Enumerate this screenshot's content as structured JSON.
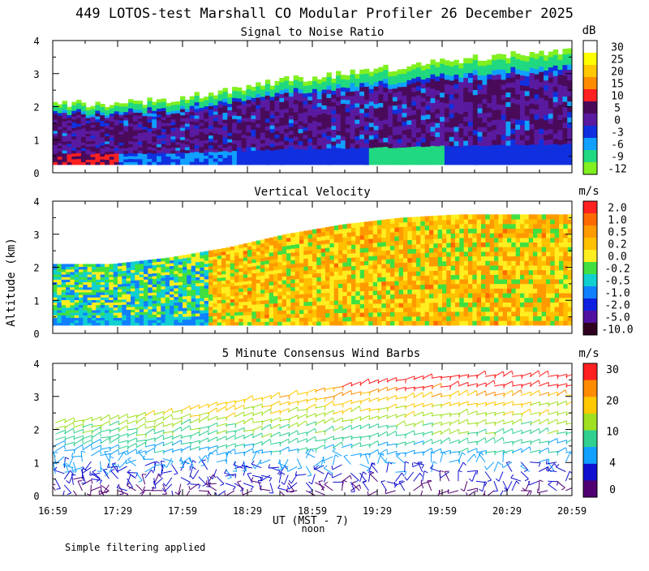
{
  "title": "449 LOTOS-test Marshall CO Modular Profiler 26 December 2025",
  "y_axis_label": "Altitude (km)",
  "x_axis_label": "UT  (MST - 7)",
  "noon_label": "noon",
  "footer_note": "Simple filtering applied",
  "x_ticks": [
    "16:59",
    "17:29",
    "17:59",
    "18:29",
    "18:59",
    "19:29",
    "19:59",
    "20:29",
    "20:59"
  ],
  "y_ticks": [
    "0",
    "1",
    "2",
    "3",
    "4"
  ],
  "colors": {
    "background": "#ffffff",
    "axis": "#000000"
  },
  "chart_data": [
    {
      "type": "heatmap",
      "title": "Signal to Noise Ratio",
      "unit": "dB",
      "xlim": [
        "16:59",
        "20:59"
      ],
      "ylim": [
        0,
        4
      ],
      "colorbar_labels": [
        "30",
        "25",
        "20",
        "15",
        "10",
        "5",
        "0",
        "-3",
        "-6",
        "-9",
        "-12"
      ],
      "colorbar_colors": [
        "#ffffff",
        "#ffff00",
        "#ffc800",
        "#ff8c00",
        "#ff2020",
        "#4a0a5a",
        "#5a1aa0",
        "#1030e0",
        "#10a0ff",
        "#20d880",
        "#80f020"
      ],
      "top_of_data_km": [
        2.1,
        2.1,
        2.2,
        2.5,
        2.8,
        3.0,
        3.2,
        3.4,
        3.6,
        3.7
      ]
    },
    {
      "type": "heatmap",
      "title": "Vertical Velocity",
      "unit": "m/s",
      "xlim": [
        "16:59",
        "20:59"
      ],
      "ylim": [
        0,
        4
      ],
      "colorbar_labels": [
        "2.0",
        "1.0",
        "0.5",
        "0.2",
        "0.0",
        "-0.2",
        "-0.5",
        "-1.0",
        "-2.0",
        "-5.0",
        "-10.0"
      ],
      "colorbar_colors": [
        "#ff2020",
        "#ff6a00",
        "#ff9a00",
        "#ffc000",
        "#ffee20",
        "#40e040",
        "#10d0d0",
        "#1080ff",
        "#1020e0",
        "#5010a0",
        "#300020"
      ],
      "top_of_data_km": [
        2.1,
        2.1,
        2.3,
        2.6,
        3.0,
        3.3,
        3.5,
        3.6,
        3.6,
        3.6
      ]
    },
    {
      "type": "scatter",
      "title": "5 Minute Consensus Wind Barbs",
      "unit": "m/s",
      "xlim": [
        "16:59",
        "20:59"
      ],
      "ylim": [
        0,
        4
      ],
      "colorbar_labels": [
        "30",
        "20",
        "10",
        "4",
        "0"
      ],
      "colorbar_colors": [
        "#ff2020",
        "#ff8c00",
        "#ffc800",
        "#a0e020",
        "#30d090",
        "#10a0ff",
        "#1010d0",
        "#500070"
      ],
      "top_of_data_km": [
        2.2,
        2.3,
        2.5,
        2.8,
        3.0,
        3.3,
        3.5,
        3.6,
        3.6,
        3.6
      ]
    }
  ]
}
